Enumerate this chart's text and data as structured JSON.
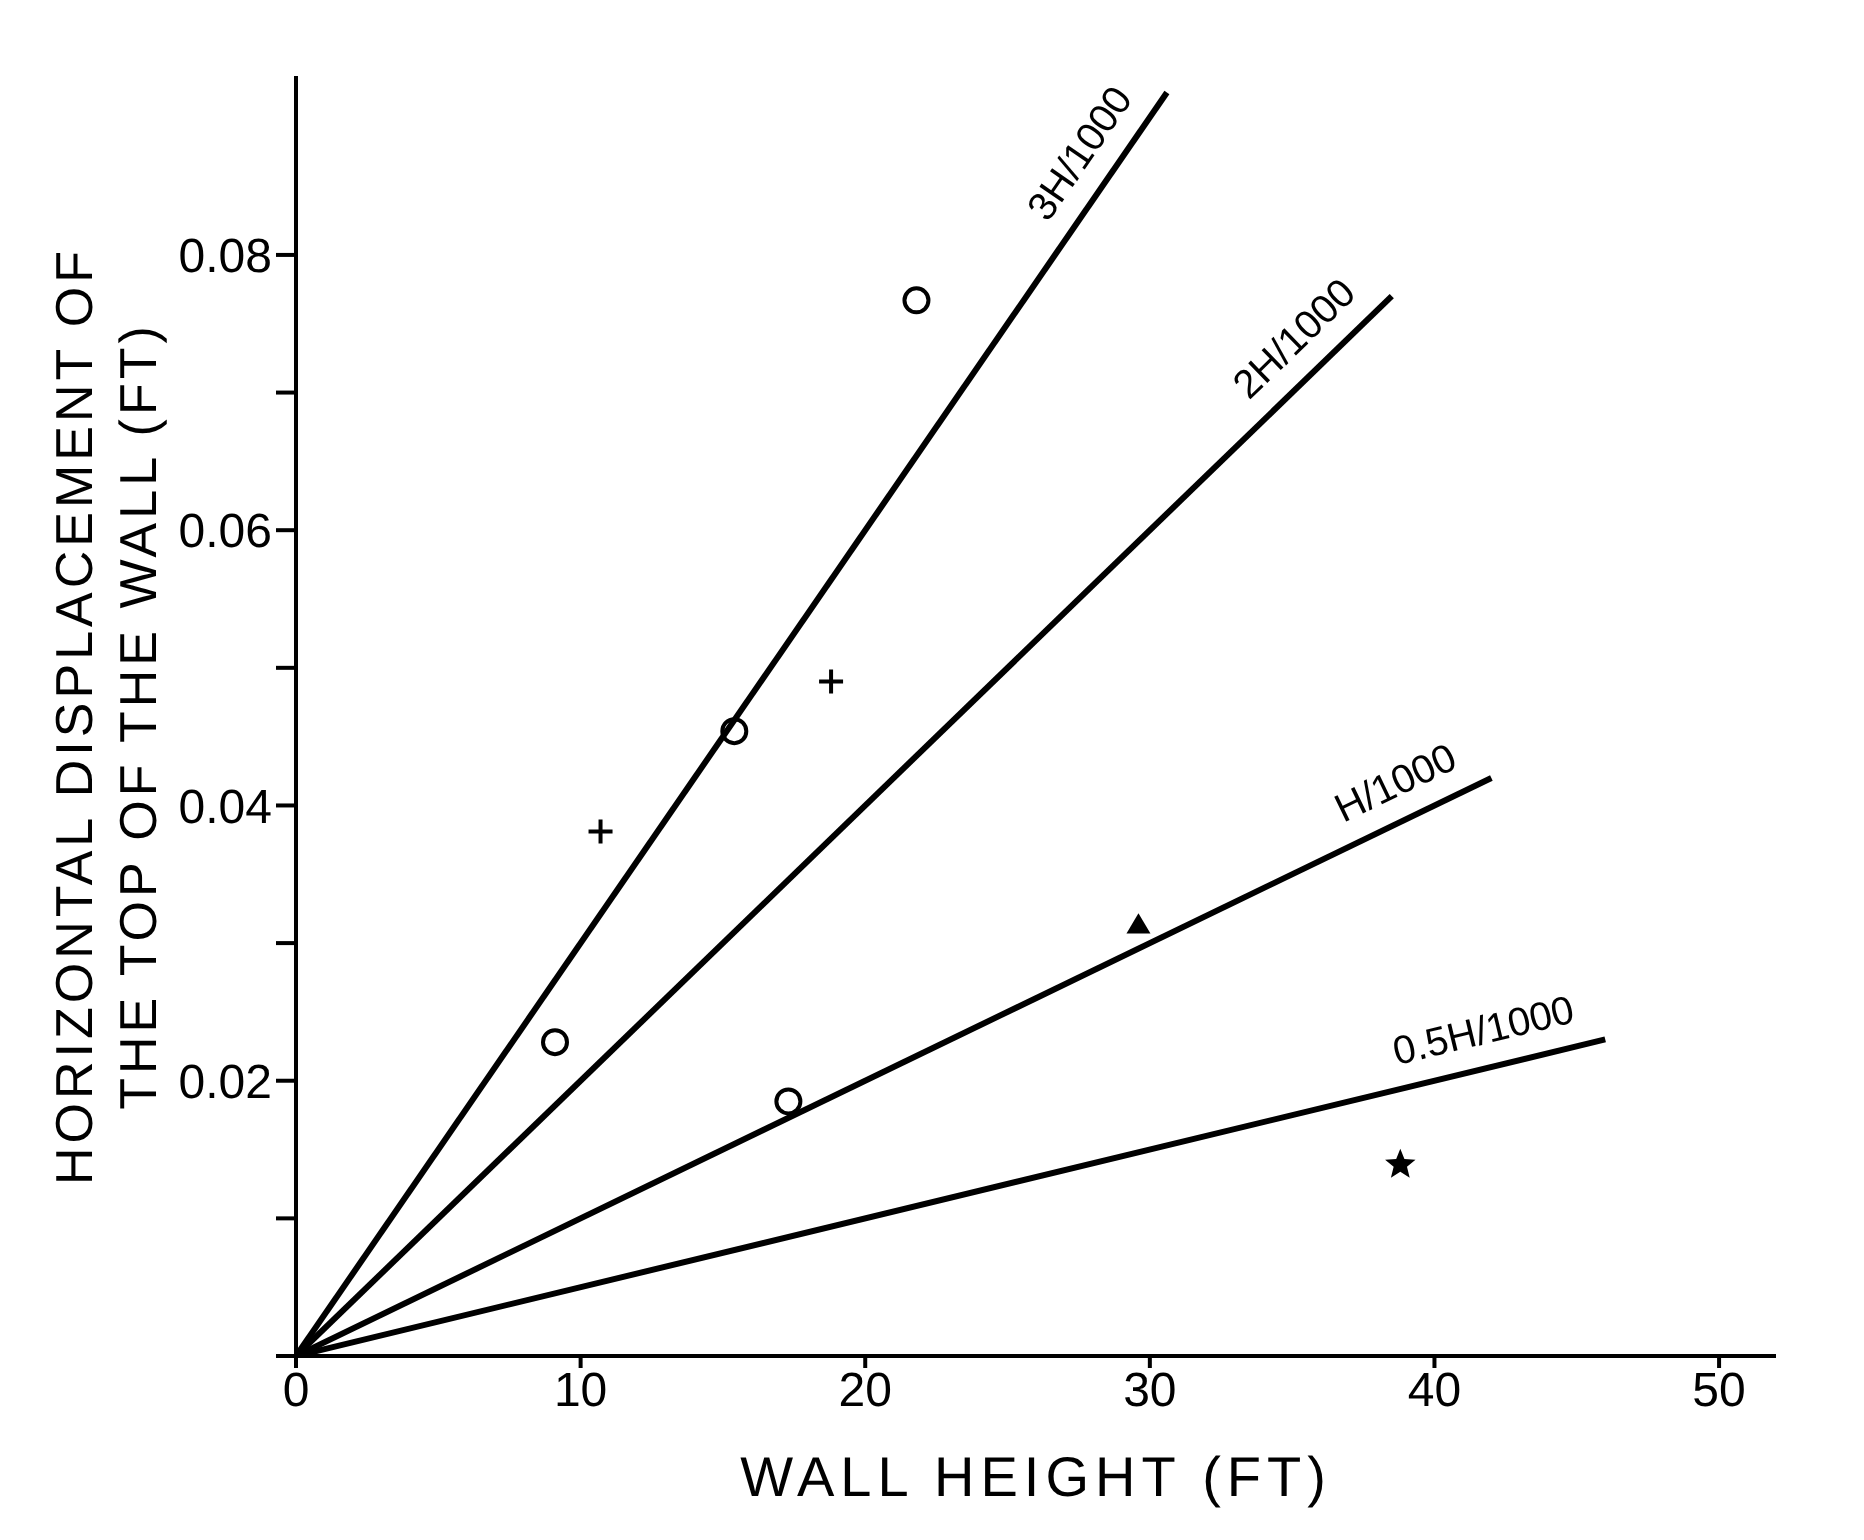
{
  "chart_data": {
    "type": "scatter",
    "xlabel": "WALL HEIGHT (FT)",
    "ylabel": "HORIZONTAL DISPLACEMENT OF\nTHE TOP OF THE WALL (FT)",
    "xlim": [
      0,
      52
    ],
    "xticks": [
      0,
      10,
      20,
      30,
      40,
      50
    ],
    "ylim": [
      0,
      0.093
    ],
    "yticks": [
      {
        "value": 0,
        "label": null
      },
      {
        "value": 0.01,
        "label": null
      },
      0.02,
      {
        "value": 0.03,
        "label": null
      },
      0.04,
      {
        "value": 0.05,
        "label": null
      },
      0.06,
      {
        "value": 0.07,
        "label": null
      },
      0.08
    ],
    "grid": false,
    "legend": false,
    "series": [
      {
        "type": "line",
        "name": "3H/1000",
        "color": "#000000",
        "marker": "none",
        "x": [
          0,
          30.6
        ],
        "values": [
          0,
          0.0918
        ]
      },
      {
        "type": "line",
        "name": "2H/1000",
        "color": "#000000",
        "marker": "none",
        "x": [
          0,
          38.5
        ],
        "values": [
          0,
          0.077
        ]
      },
      {
        "type": "line",
        "name": "H/1000",
        "color": "#000000",
        "marker": "none",
        "x": [
          0,
          42
        ],
        "values": [
          0,
          0.042
        ]
      },
      {
        "type": "line",
        "name": "0.5H/1000",
        "color": "#000000",
        "marker": "none",
        "x": [
          0,
          46
        ],
        "values": [
          0,
          0.023
        ]
      },
      {
        "color": "#000000",
        "marker": "circle",
        "x": [
          9.1,
          15.4,
          21.8
        ],
        "values": [
          0.0228,
          0.0454,
          0.0767
        ]
      },
      {
        "color": "#000000",
        "marker": "cross",
        "x": [
          10.7,
          18.8
        ],
        "values": [
          0.0381,
          0.049
        ]
      },
      {
        "color": "#000000",
        "marker": "circle",
        "x": [
          17.3
        ],
        "values": [
          0.0185
        ]
      },
      {
        "color": "#000000",
        "marker": "triangle",
        "x": [
          29.6
        ],
        "values": [
          0.0313
        ]
      },
      {
        "color": "#000000",
        "marker": "star",
        "x": [
          38.8
        ],
        "values": [
          0.0139
        ]
      }
    ]
  }
}
